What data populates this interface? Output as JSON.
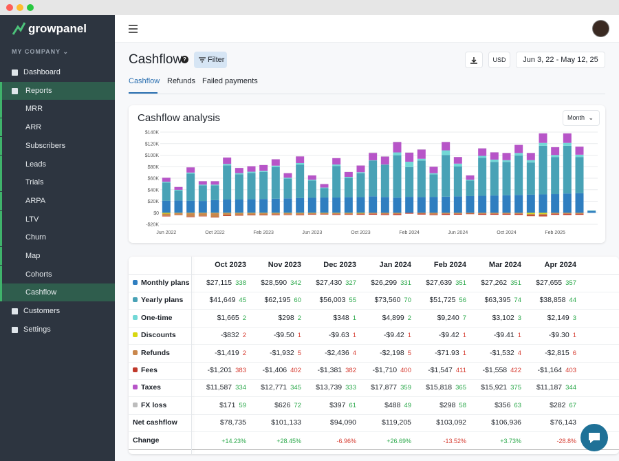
{
  "sidebar": {
    "brand": "growpanel",
    "company": "MY COMPANY",
    "nav": [
      "Dashboard",
      "Reports",
      "MRR",
      "ARR",
      "Subscribers",
      "Leads",
      "Trials",
      "ARPA",
      "LTV",
      "Churn",
      "Map",
      "Cohorts",
      "Cashflow",
      "Customers",
      "Settings"
    ]
  },
  "header": {
    "title": "Cashflow",
    "filter": "Filter",
    "currency": "USD",
    "date_range": "Jun 3, 22 - May 12, 25",
    "period": "Month"
  },
  "tabs": [
    "Cashflow",
    "Refunds",
    "Failed payments"
  ],
  "chart_data": {
    "type": "bar",
    "stacked": true,
    "title": "Cashflow analysis",
    "grid": true,
    "categories": [
      "Jun 2022",
      null,
      null,
      null,
      "Oct 2022",
      null,
      null,
      null,
      "Feb 2023",
      null,
      null,
      null,
      "Jun 2023",
      null,
      null,
      null,
      "Oct 2023",
      null,
      null,
      null,
      "Feb 2024",
      null,
      null,
      null,
      "Jun 2024",
      null,
      null,
      null,
      "Oct 2024",
      null,
      null,
      null,
      "Feb 2025",
      null,
      null,
      null
    ],
    "ylim": [
      -20000,
      140000
    ],
    "yticks": [
      {
        "value": -20000,
        "label": "-$20K"
      },
      {
        "value": 0,
        "label": "$0"
      },
      {
        "value": 20000,
        "label": "$20K"
      },
      {
        "value": 40000,
        "label": "$40K"
      },
      {
        "value": 60000,
        "label": "$60K"
      },
      {
        "value": 80000,
        "label": "$80K"
      },
      {
        "value": 100000,
        "label": "$100K"
      },
      {
        "value": 120000,
        "label": "$120K"
      },
      {
        "value": 140000,
        "label": "$140K"
      }
    ],
    "series": [
      {
        "name": "Monthly plans",
        "color": "#2f7ec0",
        "values": [
          21000,
          21500,
          21000,
          20500,
          22000,
          23000,
          23000,
          23500,
          24000,
          24500,
          25000,
          25500,
          26000,
          26500,
          26500,
          27000,
          27115,
          28590,
          27430,
          26299,
          27639,
          27262,
          27655,
          28000,
          28500,
          29000,
          29500,
          30000,
          30500,
          31000,
          31500,
          32000,
          32500,
          33500,
          34000,
          3000
        ]
      },
      {
        "name": "Yearly plans",
        "color": "#48a2b6",
        "values": [
          31300,
          17300,
          46800,
          27100,
          25600,
          59300,
          43800,
          45800,
          46800,
          54800,
          34300,
          57800,
          29800,
          16300,
          54800,
          33500,
          41649,
          62195,
          56003,
          73560,
          51725,
          63395,
          38858,
          72300,
          51800,
          26800,
          65800,
          58300,
          57800,
          68300,
          55800,
          84300,
          64300,
          82800,
          62800,
          1000
        ]
      },
      {
        "name": "One-time",
        "color": "#72d8d6",
        "values": [
          1500,
          1000,
          2000,
          1200,
          1200,
          2500,
          2000,
          2000,
          2000,
          2500,
          1500,
          3000,
          1500,
          1000,
          2500,
          1800,
          1665,
          298,
          348,
          4899,
          9240,
          3102,
          2149,
          8000,
          5000,
          1500,
          3500,
          4000,
          3000,
          4500,
          4000,
          5000,
          3500,
          5000,
          4000,
          200
        ]
      },
      {
        "name": "Discounts",
        "color": "#d8d810",
        "values": [
          -1500,
          -500,
          -500,
          -500,
          -500,
          -500,
          -500,
          -500,
          -500,
          -500,
          -500,
          -500,
          -500,
          -500,
          -500,
          -500,
          -832,
          -9.5,
          -9.63,
          -9.42,
          -9.42,
          -9.41,
          -9.3,
          -10,
          -10,
          -10,
          -10,
          -10,
          -10,
          -10,
          -2000,
          -2000,
          -10,
          -10,
          -10,
          0
        ]
      },
      {
        "name": "Refunds",
        "color": "#c9874c",
        "values": [
          -4000,
          -3000,
          -6000,
          -5000,
          -7000,
          -4000,
          -3500,
          -3000,
          -3000,
          -2500,
          -2500,
          -2500,
          -2000,
          -2000,
          -2000,
          -2000,
          -1419,
          -1932,
          -2436,
          -2198,
          -71.93,
          -1532,
          -2815,
          -2000,
          -2000,
          -1500,
          -2000,
          -2000,
          -2000,
          -2000,
          -2500,
          -2500,
          -2000,
          -2000,
          -2000,
          0
        ]
      },
      {
        "name": "Fees",
        "color": "#c0392b",
        "values": [
          -800,
          -600,
          -1000,
          -700,
          -700,
          -1200,
          -1000,
          -1000,
          -1000,
          -1200,
          -900,
          -1200,
          -900,
          -700,
          -1200,
          -1000,
          -1201,
          -1406,
          -1381,
          -1710,
          -1547,
          -1558,
          -1164,
          -1600,
          -1300,
          -900,
          -1500,
          -1400,
          -1400,
          -1600,
          -1400,
          -1800,
          -1500,
          -1800,
          -1500,
          0
        ]
      },
      {
        "name": "Taxes",
        "color": "#b755c8",
        "values": [
          7000,
          5000,
          9000,
          6000,
          6000,
          11000,
          9000,
          9500,
          10000,
          11000,
          8000,
          11500,
          7500,
          6000,
          11000,
          8500,
          11587,
          12771,
          13739,
          17877,
          15818,
          15921,
          11187,
          14500,
          11500,
          7500,
          13000,
          12500,
          12500,
          14000,
          12500,
          16500,
          13500,
          16500,
          14000,
          0
        ]
      },
      {
        "name": "FX loss",
        "color": "#bdbdbd",
        "values": [
          200,
          200,
          200,
          200,
          200,
          200,
          200,
          200,
          200,
          200,
          200,
          200,
          200,
          200,
          200,
          200,
          171,
          626,
          397,
          488,
          298,
          356,
          282,
          200,
          200,
          200,
          200,
          200,
          200,
          200,
          200,
          200,
          200,
          200,
          200,
          0
        ]
      }
    ]
  },
  "table": {
    "columns": [
      "Oct 2023",
      "Nov 2023",
      "Dec 2023",
      "Jan 2024",
      "Feb 2024",
      "Mar 2024",
      "Apr 2024"
    ],
    "rows": [
      [
        {
          "amount": "$27,115",
          "count": "338"
        },
        {
          "amount": "$28,590",
          "count": "342"
        },
        {
          "amount": "$27,430",
          "count": "327"
        },
        {
          "amount": "$26,299",
          "count": "331"
        },
        {
          "amount": "$27,639",
          "count": "351"
        },
        {
          "amount": "$27,262",
          "count": "351"
        },
        {
          "amount": "$27,655",
          "count": "357"
        }
      ],
      [
        {
          "amount": "$41,649",
          "count": "45"
        },
        {
          "amount": "$62,195",
          "count": "60"
        },
        {
          "amount": "$56,003",
          "count": "55"
        },
        {
          "amount": "$73,560",
          "count": "70"
        },
        {
          "amount": "$51,725",
          "count": "56"
        },
        {
          "amount": "$63,395",
          "count": "74"
        },
        {
          "amount": "$38,858",
          "count": "44"
        }
      ],
      [
        {
          "amount": "$1,665",
          "count": "2"
        },
        {
          "amount": "$298",
          "count": "2"
        },
        {
          "amount": "$348",
          "count": "1"
        },
        {
          "amount": "$4,899",
          "count": "2"
        },
        {
          "amount": "$9,240",
          "count": "7"
        },
        {
          "amount": "$3,102",
          "count": "3"
        },
        {
          "amount": "$2,149",
          "count": "3"
        }
      ],
      [
        {
          "amount": "-$832",
          "count": "2"
        },
        {
          "amount": "-$9.50",
          "count": "1"
        },
        {
          "amount": "-$9.63",
          "count": "1"
        },
        {
          "amount": "-$9.42",
          "count": "1"
        },
        {
          "amount": "-$9.42",
          "count": "1"
        },
        {
          "amount": "-$9.41",
          "count": "1"
        },
        {
          "amount": "-$9.30",
          "count": "1"
        }
      ],
      [
        {
          "amount": "-$1,419",
          "count": "2"
        },
        {
          "amount": "-$1,932",
          "count": "5"
        },
        {
          "amount": "-$2,436",
          "count": "4"
        },
        {
          "amount": "-$2,198",
          "count": "5"
        },
        {
          "amount": "-$71.93",
          "count": "1"
        },
        {
          "amount": "-$1,532",
          "count": "4"
        },
        {
          "amount": "-$2,815",
          "count": "6"
        }
      ],
      [
        {
          "amount": "-$1,201",
          "count": "383"
        },
        {
          "amount": "-$1,406",
          "count": "402"
        },
        {
          "amount": "-$1,381",
          "count": "382"
        },
        {
          "amount": "-$1,710",
          "count": "400"
        },
        {
          "amount": "-$1,547",
          "count": "411"
        },
        {
          "amount": "-$1,558",
          "count": "422"
        },
        {
          "amount": "-$1,164",
          "count": "403"
        }
      ],
      [
        {
          "amount": "$11,587",
          "count": "334"
        },
        {
          "amount": "$12,771",
          "count": "345"
        },
        {
          "amount": "$13,739",
          "count": "333"
        },
        {
          "amount": "$17,877",
          "count": "359"
        },
        {
          "amount": "$15,818",
          "count": "365"
        },
        {
          "amount": "$15,921",
          "count": "375"
        },
        {
          "amount": "$11,187",
          "count": "344"
        }
      ],
      [
        {
          "amount": "$171",
          "count": "59"
        },
        {
          "amount": "$626",
          "count": "72"
        },
        {
          "amount": "$397",
          "count": "61"
        },
        {
          "amount": "$488",
          "count": "49"
        },
        {
          "amount": "$298",
          "count": "58"
        },
        {
          "amount": "$356",
          "count": "63"
        },
        {
          "amount": "$282",
          "count": "67"
        }
      ]
    ],
    "net_label": "Net cashflow",
    "net": [
      "$78,735",
      "$101,133",
      "$94,090",
      "$119,205",
      "$103,092",
      "$106,936",
      "$76,143"
    ],
    "change_label": "Change",
    "change": [
      "+14.23%",
      "+28.45%",
      "-6.96%",
      "+26.69%",
      "-13.52%",
      "+3.73%",
      "-28.8%"
    ]
  }
}
